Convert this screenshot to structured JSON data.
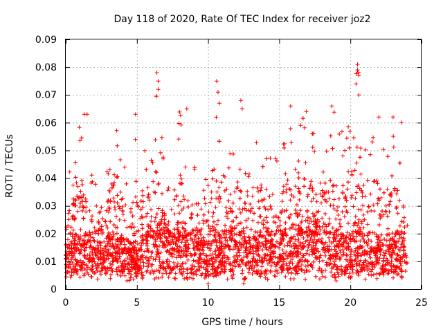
{
  "chart_data": {
    "type": "scatter",
    "title": "Day 118 of 2020, Rate Of TEC Index for receiver joz2",
    "xlabel": "GPS time / hours",
    "ylabel": "ROTI / TECUs",
    "xlim": [
      0,
      25
    ],
    "ylim": [
      0,
      0.09
    ],
    "xticks": [
      0,
      5,
      10,
      15,
      20,
      25
    ],
    "xtick_labels": [
      "0",
      "5",
      "10",
      "15",
      "20",
      "25"
    ],
    "yticks": [
      0,
      0.01,
      0.02,
      0.03,
      0.04,
      0.05,
      0.06,
      0.07,
      0.08,
      0.09
    ],
    "ytick_labels": [
      "0",
      "0.01",
      "0.02",
      "0.03",
      "0.04",
      "0.05",
      "0.06",
      "0.07",
      "0.08",
      "0.09"
    ],
    "grid": true,
    "marker": "+",
    "series": [
      {
        "name": "ROTI",
        "color": "#ff0000",
        "profile": {
          "hours": [
            0.0,
            0.5,
            1.0,
            1.5,
            2.0,
            2.5,
            3.0,
            3.5,
            4.0,
            4.5,
            5.0,
            5.5,
            6.0,
            6.5,
            7.0,
            7.5,
            8.0,
            8.5,
            9.0,
            9.5,
            10.0,
            10.5,
            11.0,
            11.5,
            12.0,
            12.5,
            13.0,
            13.5,
            14.0,
            14.5,
            15.0,
            15.5,
            16.0,
            16.5,
            17.0,
            17.5,
            18.0,
            18.5,
            19.0,
            19.5,
            20.0,
            20.5,
            21.0,
            21.5,
            22.0,
            22.5,
            23.0,
            23.5,
            24.0
          ],
          "typical_roti": [
            0.013,
            0.015,
            0.014,
            0.016,
            0.013,
            0.012,
            0.015,
            0.017,
            0.014,
            0.013,
            0.011,
            0.016,
            0.018,
            0.019,
            0.017,
            0.016,
            0.018,
            0.017,
            0.016,
            0.015,
            0.014,
            0.016,
            0.015,
            0.017,
            0.016,
            0.015,
            0.014,
            0.015,
            0.016,
            0.015,
            0.016,
            0.018,
            0.019,
            0.018,
            0.017,
            0.019,
            0.018,
            0.017,
            0.016,
            0.015,
            0.015,
            0.017,
            0.016,
            0.015,
            0.014,
            0.014,
            0.015,
            0.016,
            0.014
          ],
          "peak_roti": [
            0.04,
            0.05,
            0.063,
            0.048,
            0.04,
            0.036,
            0.055,
            0.06,
            0.052,
            0.047,
            0.063,
            0.055,
            0.05,
            0.078,
            0.04,
            0.035,
            0.065,
            0.05,
            0.047,
            0.042,
            0.04,
            0.075,
            0.043,
            0.052,
            0.068,
            0.05,
            0.048,
            0.062,
            0.052,
            0.05,
            0.045,
            0.066,
            0.06,
            0.065,
            0.063,
            0.057,
            0.06,
            0.062,
            0.066,
            0.055,
            0.064,
            0.081,
            0.062,
            0.06,
            0.062,
            0.058,
            0.055,
            0.062,
            0.045
          ]
        },
        "notable_points": [
          {
            "x": 6.4,
            "y": 0.078
          },
          {
            "x": 6.5,
            "y": 0.075
          },
          {
            "x": 6.5,
            "y": 0.072
          },
          {
            "x": 10.6,
            "y": 0.075
          },
          {
            "x": 10.7,
            "y": 0.071
          },
          {
            "x": 10.8,
            "y": 0.067
          },
          {
            "x": 12.3,
            "y": 0.068
          },
          {
            "x": 12.4,
            "y": 0.065
          },
          {
            "x": 20.5,
            "y": 0.081
          },
          {
            "x": 20.5,
            "y": 0.079
          },
          {
            "x": 20.6,
            "y": 0.077
          },
          {
            "x": 20.4,
            "y": 0.074
          },
          {
            "x": 20.6,
            "y": 0.07
          },
          {
            "x": 1.3,
            "y": 0.063
          },
          {
            "x": 1.5,
            "y": 0.063
          },
          {
            "x": 4.9,
            "y": 0.063
          },
          {
            "x": 8.5,
            "y": 0.065
          },
          {
            "x": 15.8,
            "y": 0.066
          },
          {
            "x": 16.9,
            "y": 0.064
          },
          {
            "x": 18.7,
            "y": 0.066
          },
          {
            "x": 22.0,
            "y": 0.062
          },
          {
            "x": 23.0,
            "y": 0.062
          },
          {
            "x": 23.6,
            "y": 0.06
          },
          {
            "x": 12.5,
            "y": 0.002
          },
          {
            "x": 10.0,
            "y": 0.002
          },
          {
            "x": 4.3,
            "y": 0.003
          },
          {
            "x": 19.0,
            "y": 0.003
          }
        ]
      }
    ]
  }
}
